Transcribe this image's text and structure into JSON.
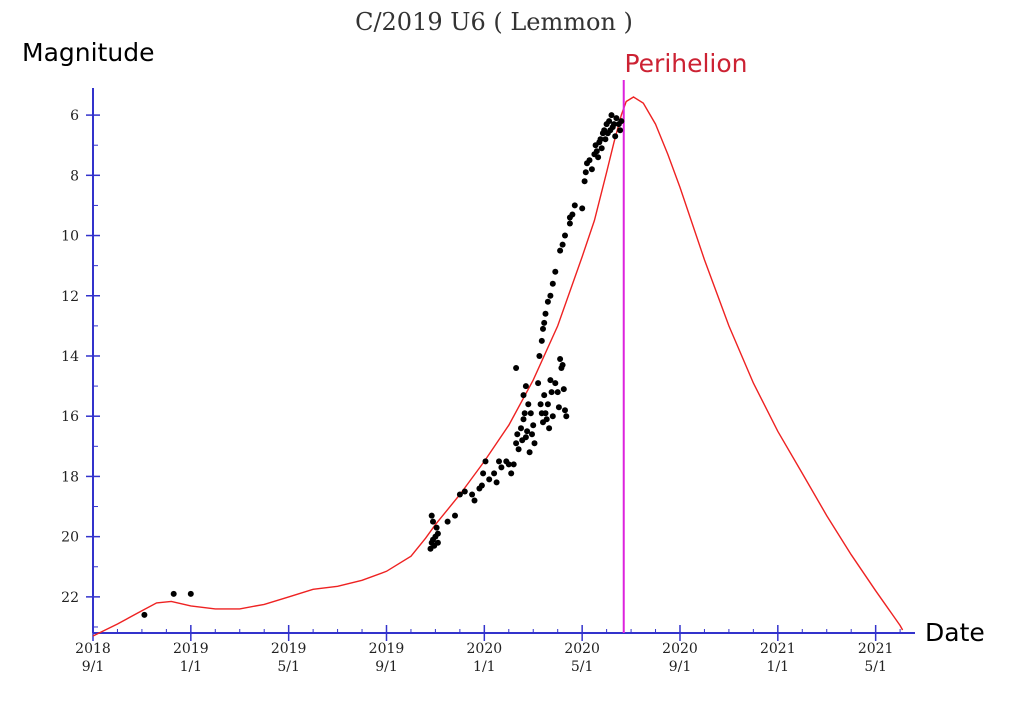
{
  "chart_data": {
    "type": "scatter",
    "title": "C/2019 U6 ( Lemmon )",
    "ylabel": "Magnitude",
    "xlabel": "Date",
    "ylim": [
      23.2,
      5.1
    ],
    "y_inverted": true,
    "y_ticks": [
      6,
      8,
      10,
      12,
      14,
      16,
      18,
      20,
      22
    ],
    "x_axis_unit": "months since 2018-09-01",
    "xlim": [
      0,
      33.2
    ],
    "x_ticks": [
      {
        "m": 0,
        "year": "2018",
        "date": "9/1"
      },
      {
        "m": 4,
        "year": "2019",
        "date": "1/1"
      },
      {
        "m": 8,
        "year": "2019",
        "date": "5/1"
      },
      {
        "m": 12,
        "year": "2019",
        "date": "9/1"
      },
      {
        "m": 16,
        "year": "2020",
        "date": "1/1"
      },
      {
        "m": 20,
        "year": "2020",
        "date": "5/1"
      },
      {
        "m": 24,
        "year": "2020",
        "date": "9/1"
      },
      {
        "m": 28,
        "year": "2021",
        "date": "1/1"
      },
      {
        "m": 32,
        "year": "2021",
        "date": "5/1"
      }
    ],
    "perihelion": {
      "label": "Perihelion",
      "m": 21.7,
      "color": "#cc2233",
      "line_color": "#dd22dd"
    },
    "axis_color": "#3333cc",
    "curve_color": "#ee2222",
    "point_color": "#000000",
    "predicted_curve": [
      [
        0,
        23.3
      ],
      [
        1,
        22.9
      ],
      [
        1.8,
        22.55
      ],
      [
        2.6,
        22.2
      ],
      [
        3.2,
        22.15
      ],
      [
        4,
        22.3
      ],
      [
        5,
        22.4
      ],
      [
        6,
        22.4
      ],
      [
        7,
        22.25
      ],
      [
        8,
        22.0
      ],
      [
        9,
        21.75
      ],
      [
        10,
        21.65
      ],
      [
        11,
        21.45
      ],
      [
        12,
        21.15
      ],
      [
        13,
        20.65
      ],
      [
        13.6,
        20.05
      ],
      [
        14,
        19.6
      ],
      [
        15,
        18.6
      ],
      [
        16,
        17.5
      ],
      [
        17,
        16.3
      ],
      [
        18,
        14.8
      ],
      [
        19,
        13.0
      ],
      [
        20,
        10.7
      ],
      [
        20.5,
        9.5
      ],
      [
        21,
        7.9
      ],
      [
        21.3,
        6.9
      ],
      [
        21.6,
        6.0
      ],
      [
        21.8,
        5.55
      ],
      [
        22.1,
        5.4
      ],
      [
        22.5,
        5.6
      ],
      [
        23,
        6.3
      ],
      [
        23.5,
        7.3
      ],
      [
        24,
        8.4
      ],
      [
        25,
        10.8
      ],
      [
        26,
        13.0
      ],
      [
        27,
        14.9
      ],
      [
        28,
        16.5
      ],
      [
        29,
        17.9
      ],
      [
        30,
        19.3
      ],
      [
        31,
        20.6
      ],
      [
        32,
        21.8
      ],
      [
        33,
        22.95
      ],
      [
        33.1,
        23.1
      ]
    ],
    "observations": [
      [
        2.1,
        22.6
      ],
      [
        3.3,
        21.9
      ],
      [
        4.0,
        21.9
      ],
      [
        13.8,
        20.4
      ],
      [
        13.85,
        20.2
      ],
      [
        13.9,
        20.1
      ],
      [
        13.95,
        20.3
      ],
      [
        14.0,
        20.0
      ],
      [
        14.05,
        19.7
      ],
      [
        14.1,
        19.9
      ],
      [
        13.85,
        19.3
      ],
      [
        13.9,
        19.5
      ],
      [
        14.1,
        20.2
      ],
      [
        14.5,
        19.5
      ],
      [
        14.8,
        19.3
      ],
      [
        15.0,
        18.6
      ],
      [
        15.2,
        18.5
      ],
      [
        15.5,
        18.6
      ],
      [
        15.6,
        18.8
      ],
      [
        15.8,
        18.4
      ],
      [
        15.9,
        18.3
      ],
      [
        15.95,
        17.9
      ],
      [
        16.05,
        17.5
      ],
      [
        16.2,
        18.1
      ],
      [
        16.4,
        17.9
      ],
      [
        16.5,
        18.2
      ],
      [
        16.6,
        17.5
      ],
      [
        16.7,
        17.7
      ],
      [
        16.9,
        17.5
      ],
      [
        17.0,
        17.6
      ],
      [
        17.1,
        17.9
      ],
      [
        17.2,
        17.6
      ],
      [
        17.3,
        16.9
      ],
      [
        17.35,
        16.6
      ],
      [
        17.4,
        17.1
      ],
      [
        17.5,
        16.4
      ],
      [
        17.55,
        16.8
      ],
      [
        17.6,
        16.1
      ],
      [
        17.65,
        15.9
      ],
      [
        17.7,
        16.7
      ],
      [
        17.75,
        16.5
      ],
      [
        17.8,
        15.6
      ],
      [
        17.85,
        17.2
      ],
      [
        17.9,
        15.9
      ],
      [
        17.95,
        16.6
      ],
      [
        18.0,
        16.3
      ],
      [
        18.05,
        16.9
      ],
      [
        17.3,
        14.4
      ],
      [
        17.6,
        15.3
      ],
      [
        17.7,
        15.0
      ],
      [
        18.2,
        14.9
      ],
      [
        18.3,
        15.6
      ],
      [
        18.35,
        15.9
      ],
      [
        18.4,
        16.2
      ],
      [
        18.45,
        15.3
      ],
      [
        18.5,
        15.9
      ],
      [
        18.55,
        16.1
      ],
      [
        18.6,
        15.6
      ],
      [
        18.65,
        16.4
      ],
      [
        18.7,
        14.8
      ],
      [
        18.75,
        15.2
      ],
      [
        18.8,
        16.0
      ],
      [
        18.9,
        14.9
      ],
      [
        19.0,
        15.2
      ],
      [
        19.05,
        15.7
      ],
      [
        19.1,
        14.1
      ],
      [
        19.15,
        14.4
      ],
      [
        19.2,
        14.3
      ],
      [
        19.25,
        15.1
      ],
      [
        19.3,
        15.8
      ],
      [
        19.35,
        16.0
      ],
      [
        18.25,
        14.0
      ],
      [
        18.35,
        13.5
      ],
      [
        18.4,
        13.1
      ],
      [
        18.45,
        12.9
      ],
      [
        18.5,
        12.6
      ],
      [
        18.6,
        12.2
      ],
      [
        18.7,
        12.0
      ],
      [
        18.8,
        11.6
      ],
      [
        18.9,
        11.2
      ],
      [
        19.1,
        10.5
      ],
      [
        19.2,
        10.3
      ],
      [
        19.3,
        10.0
      ],
      [
        19.5,
        9.6
      ],
      [
        19.6,
        9.3
      ],
      [
        19.7,
        9.0
      ],
      [
        20.1,
        8.2
      ],
      [
        20.15,
        7.9
      ],
      [
        20.2,
        7.6
      ],
      [
        20.3,
        7.5
      ],
      [
        20.4,
        7.8
      ],
      [
        20.5,
        7.3
      ],
      [
        20.55,
        7.0
      ],
      [
        20.6,
        7.2
      ],
      [
        20.7,
        6.9
      ],
      [
        20.75,
        6.8
      ],
      [
        20.8,
        7.1
      ],
      [
        20.85,
        6.6
      ],
      [
        20.9,
        6.5
      ],
      [
        20.95,
        6.8
      ],
      [
        21.0,
        6.3
      ],
      [
        21.05,
        6.6
      ],
      [
        21.1,
        6.2
      ],
      [
        21.15,
        6.5
      ],
      [
        21.2,
        6.0
      ],
      [
        21.25,
        6.4
      ],
      [
        21.3,
        6.3
      ],
      [
        21.35,
        6.7
      ],
      [
        21.4,
        6.1
      ],
      [
        21.5,
        6.3
      ],
      [
        21.55,
        6.5
      ],
      [
        21.6,
        6.2
      ],
      [
        20.0,
        9.1
      ],
      [
        19.5,
        9.4
      ],
      [
        20.65,
        7.4
      ]
    ]
  }
}
